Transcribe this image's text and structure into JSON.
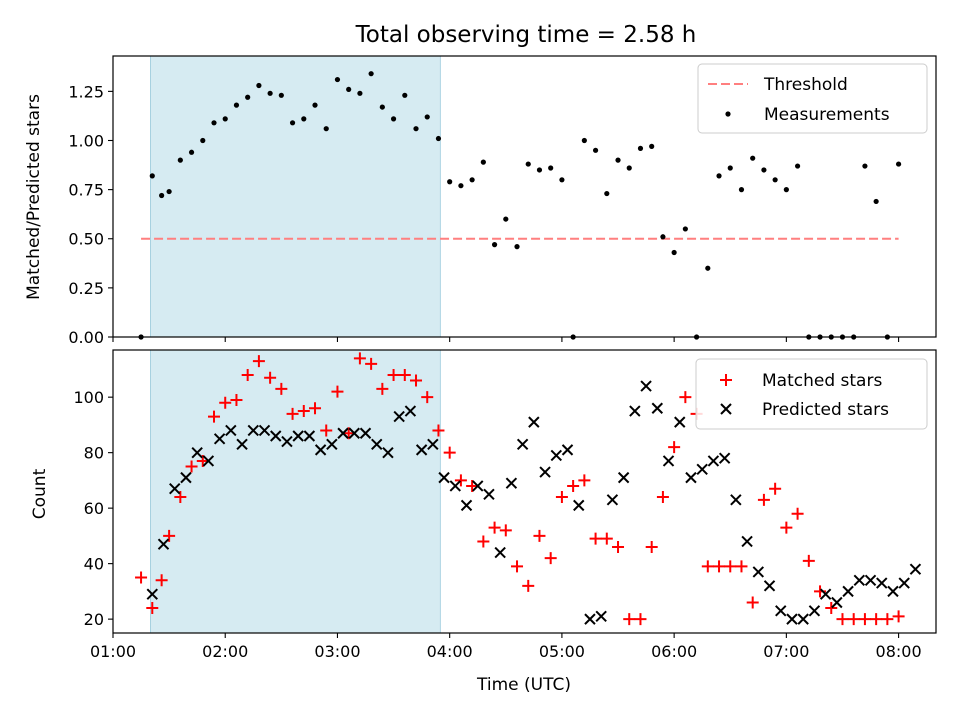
{
  "title": "Total observing time = 2.58 h",
  "chart_data": [
    {
      "type": "scatter",
      "title": "Total observing time = 2.58 h",
      "xlabel": "",
      "ylabel": "Matched/Predicted stars",
      "xlim": [
        "01:00",
        "08:20"
      ],
      "ylim": [
        0,
        1.43
      ],
      "yticks": [
        "0.00",
        "0.25",
        "0.50",
        "0.75",
        "1.00",
        "1.25"
      ],
      "ytick_values": [
        0,
        0.25,
        0.5,
        0.75,
        1.0,
        1.25
      ],
      "shaded_interval": [
        "01:20",
        "03:55"
      ],
      "shade_color": "#add8e6",
      "legend_position": "upper right",
      "series": [
        {
          "name": "Threshold",
          "kind": "dashed-line",
          "color": "#ff7f7f",
          "x": [
            "01:15",
            "08:00"
          ],
          "y": [
            0.5,
            0.5
          ]
        },
        {
          "name": "Measurements",
          "kind": "dots",
          "color": "#000000",
          "x": [
            "01:15",
            "01:21",
            "01:26",
            "01:30",
            "01:36",
            "01:42",
            "01:48",
            "01:54",
            "02:00",
            "02:06",
            "02:12",
            "02:18",
            "02:24",
            "02:30",
            "02:36",
            "02:42",
            "02:48",
            "02:54",
            "03:00",
            "03:06",
            "03:12",
            "03:18",
            "03:24",
            "03:30",
            "03:36",
            "03:42",
            "03:48",
            "03:54",
            "04:00",
            "04:06",
            "04:12",
            "04:18",
            "04:24",
            "04:30",
            "04:36",
            "04:42",
            "04:48",
            "04:54",
            "05:00",
            "05:06",
            "05:12",
            "05:18",
            "05:24",
            "05:30",
            "05:36",
            "05:42",
            "05:48",
            "05:54",
            "06:00",
            "06:06",
            "06:12",
            "06:18",
            "06:24",
            "06:30",
            "06:36",
            "06:42",
            "06:48",
            "06:54",
            "07:00",
            "07:06",
            "07:12",
            "07:18",
            "07:24",
            "07:30",
            "07:36",
            "07:42",
            "07:48",
            "07:54",
            "08:00"
          ],
          "y": [
            0.0,
            0.82,
            0.72,
            0.74,
            0.9,
            0.94,
            1.0,
            1.09,
            1.11,
            1.18,
            1.22,
            1.28,
            1.24,
            1.23,
            1.09,
            1.11,
            1.18,
            1.06,
            1.31,
            1.26,
            1.24,
            1.34,
            1.17,
            1.11,
            1.23,
            1.06,
            1.12,
            1.01,
            0.79,
            0.77,
            0.8,
            0.89,
            0.47,
            0.6,
            0.46,
            0.88,
            0.85,
            0.86,
            0.8,
            0.0,
            1.0,
            0.95,
            0.73,
            0.9,
            0.86,
            0.96,
            0.97,
            0.51,
            0.43,
            0.55,
            0.0,
            0.35,
            0.82,
            0.86,
            0.75,
            0.91,
            0.85,
            0.8,
            0.75,
            0.87,
            0.0,
            0.0,
            0.0,
            0.0,
            0.0,
            0.87,
            0.69,
            0.0,
            0.88
          ]
        }
      ]
    },
    {
      "type": "scatter",
      "title": "",
      "xlabel": "Time (UTC)",
      "ylabel": "Count",
      "xlim": [
        "01:00",
        "08:20"
      ],
      "ylim": [
        15,
        117
      ],
      "xticks": [
        "01:00",
        "02:00",
        "03:00",
        "04:00",
        "05:00",
        "06:00",
        "07:00",
        "08:00"
      ],
      "yticks": [
        "20",
        "40",
        "60",
        "80",
        "100"
      ],
      "ytick_values": [
        20,
        40,
        60,
        80,
        100
      ],
      "shaded_interval": [
        "01:20",
        "03:55"
      ],
      "shade_color": "#add8e6",
      "legend_position": "upper right",
      "series": [
        {
          "name": "Matched stars",
          "kind": "plus",
          "color": "#ff0000",
          "x": [
            "01:15",
            "01:21",
            "01:26",
            "01:30",
            "01:36",
            "01:42",
            "01:48",
            "01:54",
            "02:00",
            "02:06",
            "02:12",
            "02:18",
            "02:24",
            "02:30",
            "02:36",
            "02:42",
            "02:48",
            "02:54",
            "03:00",
            "03:06",
            "03:12",
            "03:18",
            "03:24",
            "03:30",
            "03:36",
            "03:42",
            "03:48",
            "03:54",
            "04:00",
            "04:06",
            "04:12",
            "04:18",
            "04:24",
            "04:30",
            "04:36",
            "04:42",
            "04:48",
            "04:54",
            "05:00",
            "05:06",
            "05:12",
            "05:18",
            "05:24",
            "05:30",
            "05:36",
            "05:42",
            "05:48",
            "05:54",
            "06:00",
            "06:06",
            "06:12",
            "06:18",
            "06:24",
            "06:30",
            "06:36",
            "06:42",
            "06:48",
            "06:54",
            "07:00",
            "07:06",
            "07:12",
            "07:18",
            "07:24",
            "07:30",
            "07:36",
            "07:42",
            "07:48",
            "07:54",
            "08:00"
          ],
          "y": [
            35,
            24,
            34,
            50,
            64,
            75,
            77,
            93,
            98,
            99,
            108,
            113,
            107,
            103,
            94,
            95,
            96,
            88,
            102,
            87,
            114,
            112,
            103,
            108,
            108,
            106,
            100,
            88,
            80,
            70,
            68,
            48,
            53,
            52,
            39,
            32,
            50,
            42,
            64,
            68,
            70,
            49,
            49,
            46,
            20,
            20,
            46,
            64,
            82,
            100,
            94,
            39,
            39,
            39,
            39,
            26,
            63,
            67,
            53,
            58,
            41,
            30,
            24,
            20,
            20,
            20,
            20,
            20,
            21
          ]
        },
        {
          "name": "Predicted stars",
          "kind": "cross",
          "color": "#000000",
          "x": [
            "01:21",
            "01:27",
            "01:33",
            "01:39",
            "01:45",
            "01:51",
            "01:57",
            "02:03",
            "02:09",
            "02:15",
            "02:21",
            "02:27",
            "02:33",
            "02:39",
            "02:45",
            "02:51",
            "02:57",
            "03:03",
            "03:09",
            "03:15",
            "03:21",
            "03:27",
            "03:33",
            "03:39",
            "03:45",
            "03:51",
            "03:57",
            "04:03",
            "04:09",
            "04:15",
            "04:21",
            "04:27",
            "04:33",
            "04:39",
            "04:45",
            "04:51",
            "04:57",
            "05:03",
            "05:09",
            "05:15",
            "05:21",
            "05:27",
            "05:33",
            "05:39",
            "05:45",
            "05:51",
            "05:57",
            "06:03",
            "06:09",
            "06:15",
            "06:21",
            "06:27",
            "06:33",
            "06:39",
            "06:45",
            "06:51",
            "06:57",
            "07:03",
            "07:09",
            "07:15",
            "07:21",
            "07:27",
            "07:33",
            "07:39",
            "07:45",
            "07:51",
            "07:57",
            "08:03",
            "08:09"
          ],
          "y": [
            29,
            47,
            67,
            71,
            80,
            77,
            85,
            88,
            83,
            88,
            88,
            86,
            84,
            86,
            86,
            81,
            83,
            87,
            87,
            87,
            83,
            80,
            93,
            95,
            81,
            83,
            71,
            68,
            61,
            68,
            65,
            44,
            69,
            83,
            91,
            73,
            79,
            81,
            61,
            20,
            21,
            63,
            71,
            95,
            104,
            96,
            77,
            91,
            71,
            74,
            77,
            78,
            63,
            48,
            37,
            32,
            23,
            20,
            20,
            23,
            29,
            26,
            30,
            34,
            34,
            33,
            30,
            33,
            38
          ]
        }
      ]
    }
  ]
}
